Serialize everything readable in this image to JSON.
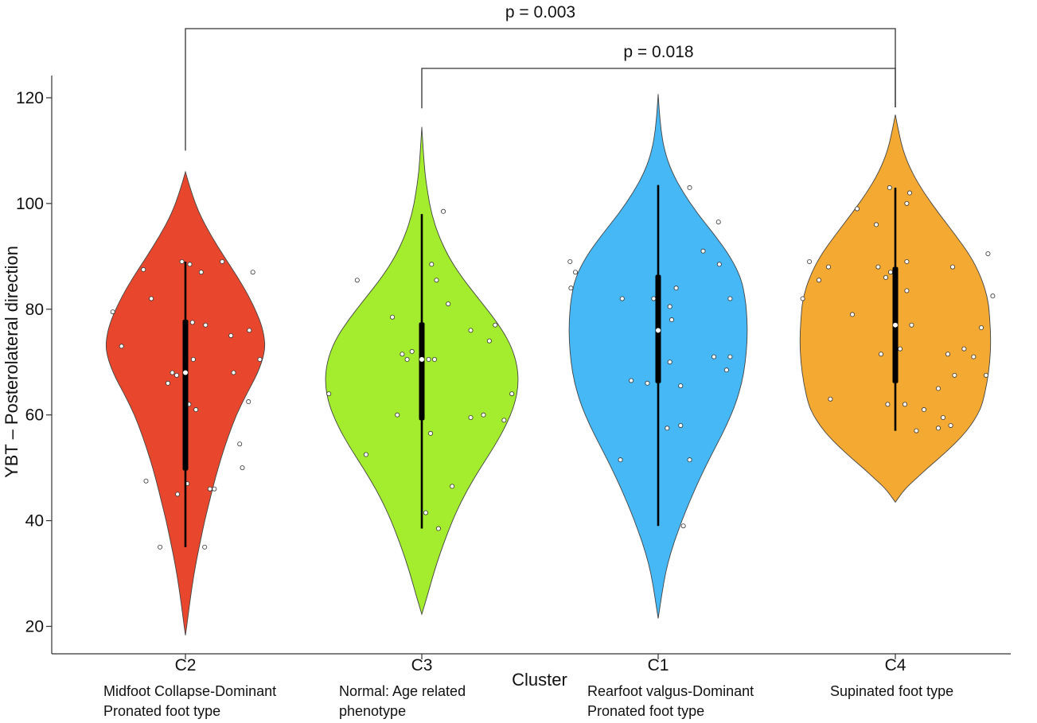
{
  "chart_data": {
    "type": "violin",
    "title": "",
    "xlabel": "Cluster",
    "ylabel": "YBT – Posterolateral direction",
    "ylim": [
      15,
      125
    ],
    "yticks": [
      20,
      40,
      60,
      80,
      100,
      120
    ],
    "grid": false,
    "groups": [
      {
        "name": "C2",
        "description": [
          "Midfoot Collapse-Dominant",
          "Pronated foot type"
        ],
        "color": "#e8472e",
        "median": 68,
        "q1": 49.5,
        "q3": 78,
        "whisker_low": 35,
        "whisker_high": 89,
        "violin_min": 18.3,
        "violin_max": 106,
        "density": [
          [
            18.3,
            0
          ],
          [
            22,
            0.03
          ],
          [
            27,
            0.07
          ],
          [
            32,
            0.12
          ],
          [
            36,
            0.17
          ],
          [
            40,
            0.22
          ],
          [
            44,
            0.28
          ],
          [
            48,
            0.34
          ],
          [
            52,
            0.41
          ],
          [
            56,
            0.49
          ],
          [
            60,
            0.58
          ],
          [
            64,
            0.7
          ],
          [
            68,
            0.83
          ],
          [
            72,
            0.91
          ],
          [
            75,
            0.9
          ],
          [
            78,
            0.85
          ],
          [
            82,
            0.74
          ],
          [
            86,
            0.6
          ],
          [
            90,
            0.44
          ],
          [
            94,
            0.29
          ],
          [
            98,
            0.16
          ],
          [
            102,
            0.07
          ],
          [
            106,
            0
          ]
        ],
        "points": [
          [
            -0.83,
            79.5
          ],
          [
            -0.73,
            73
          ],
          [
            -0.48,
            87.5
          ],
          [
            -0.39,
            82
          ],
          [
            -0.45,
            47.5
          ],
          [
            -0.29,
            35
          ],
          [
            -0.2,
            66
          ],
          [
            -0.15,
            68
          ],
          [
            -0.1,
            67.5
          ],
          [
            -0.09,
            45
          ],
          [
            -0.04,
            89
          ],
          [
            0.05,
            88.5
          ],
          [
            0.04,
            62
          ],
          [
            0.08,
            77.5
          ],
          [
            0.09,
            70.5
          ],
          [
            0.12,
            61
          ],
          [
            0.18,
            87
          ],
          [
            0.23,
            77
          ],
          [
            0.22,
            35
          ],
          [
            0.28,
            46
          ],
          [
            0.33,
            46
          ],
          [
            0.42,
            89
          ],
          [
            0.52,
            75
          ],
          [
            0.55,
            68
          ],
          [
            0.62,
            54.5
          ],
          [
            0.65,
            50
          ],
          [
            0.72,
            62.5
          ],
          [
            0.77,
            87
          ],
          [
            0.73,
            76
          ],
          [
            0.85,
            70.5
          ],
          [
            0.02,
            47
          ]
        ]
      },
      {
        "name": "C3",
        "description": [
          "Normal: Age related",
          "phenotype"
        ],
        "color": "#a3ec2e",
        "median": 70.5,
        "q1": 59,
        "q3": 77.5,
        "whisker_low": 38.5,
        "whisker_high": 98,
        "violin_min": 22.3,
        "violin_max": 114.5,
        "density": [
          [
            22.3,
            0
          ],
          [
            26,
            0.06
          ],
          [
            30,
            0.12
          ],
          [
            34,
            0.19
          ],
          [
            38,
            0.27
          ],
          [
            42,
            0.36
          ],
          [
            46,
            0.47
          ],
          [
            50,
            0.6
          ],
          [
            54,
            0.74
          ],
          [
            58,
            0.86
          ],
          [
            62,
            0.95
          ],
          [
            66,
            0.99
          ],
          [
            70,
            0.97
          ],
          [
            74,
            0.89
          ],
          [
            78,
            0.75
          ],
          [
            82,
            0.58
          ],
          [
            86,
            0.41
          ],
          [
            90,
            0.27
          ],
          [
            94,
            0.17
          ],
          [
            98,
            0.1
          ],
          [
            102,
            0.06
          ],
          [
            106,
            0.03
          ],
          [
            110,
            0.015
          ],
          [
            114.5,
            0
          ]
        ],
        "points": [
          [
            -0.95,
            64
          ],
          [
            -0.66,
            85.5
          ],
          [
            -0.57,
            52.5
          ],
          [
            -0.3,
            78.5
          ],
          [
            -0.25,
            60
          ],
          [
            -0.2,
            71.5
          ],
          [
            -0.1,
            72
          ],
          [
            -0.15,
            70.5
          ],
          [
            0.1,
            88.5
          ],
          [
            0.15,
            85.5
          ],
          [
            0.07,
            70.5
          ],
          [
            0.04,
            41.5
          ],
          [
            0.09,
            56.5
          ],
          [
            0.13,
            70.5
          ],
          [
            0.17,
            38.5
          ],
          [
            0.22,
            98.5
          ],
          [
            0.27,
            81
          ],
          [
            0.31,
            46.5
          ],
          [
            0.5,
            59.5
          ],
          [
            0.5,
            76
          ],
          [
            0.63,
            60
          ],
          [
            0.69,
            74
          ],
          [
            0.75,
            77
          ],
          [
            0.84,
            59
          ],
          [
            0.92,
            64
          ]
        ]
      },
      {
        "name": "C1",
        "description": [
          "Rearfoot valgus-Dominant",
          "Pronated foot type"
        ],
        "color": "#45b8f5",
        "median": 76,
        "q1": 66,
        "q3": 86.5,
        "whisker_low": 39,
        "whisker_high": 103.5,
        "violin_min": 21.5,
        "violin_max": 120.7,
        "density": [
          [
            21.5,
            0
          ],
          [
            26,
            0.04
          ],
          [
            30,
            0.08
          ],
          [
            34,
            0.14
          ],
          [
            38,
            0.22
          ],
          [
            42,
            0.31
          ],
          [
            46,
            0.41
          ],
          [
            50,
            0.52
          ],
          [
            54,
            0.64
          ],
          [
            58,
            0.76
          ],
          [
            62,
            0.86
          ],
          [
            66,
            0.93
          ],
          [
            70,
            0.97
          ],
          [
            74,
            0.99
          ],
          [
            78,
            0.99
          ],
          [
            82,
            0.97
          ],
          [
            86,
            0.92
          ],
          [
            90,
            0.8
          ],
          [
            94,
            0.63
          ],
          [
            98,
            0.44
          ],
          [
            102,
            0.28
          ],
          [
            106,
            0.15
          ],
          [
            110,
            0.07
          ],
          [
            114,
            0.03
          ],
          [
            118,
            0.01
          ],
          [
            120.7,
            0
          ]
        ],
        "points": [
          [
            -0.98,
            89
          ],
          [
            -0.92,
            87
          ],
          [
            -0.97,
            84
          ],
          [
            -0.4,
            82
          ],
          [
            -0.3,
            66.5
          ],
          [
            -0.42,
            51.5
          ],
          [
            -0.12,
            66
          ],
          [
            -0.05,
            82
          ],
          [
            0.1,
            57.5
          ],
          [
            0.13,
            80.5
          ],
          [
            0.13,
            70
          ],
          [
            0.15,
            78
          ],
          [
            0.2,
            84
          ],
          [
            0.25,
            65.5
          ],
          [
            0.25,
            58
          ],
          [
            0.28,
            39
          ],
          [
            0.35,
            51.5
          ],
          [
            0.35,
            103
          ],
          [
            0.5,
            91
          ],
          [
            0.62,
            71
          ],
          [
            0.68,
            88.5
          ],
          [
            0.67,
            96.5
          ],
          [
            0.76,
            68.5
          ],
          [
            0.8,
            82
          ],
          [
            0.8,
            71
          ]
        ]
      },
      {
        "name": "C4",
        "description": [
          "Supinated foot type"
        ],
        "color": "#f4aa32",
        "median": 77,
        "q1": 66,
        "q3": 88,
        "whisker_low": 57,
        "whisker_high": 103,
        "violin_min": 43.5,
        "violin_max": 116.8,
        "density": [
          [
            43.5,
            0
          ],
          [
            46,
            0.1
          ],
          [
            48,
            0.22
          ],
          [
            50,
            0.34
          ],
          [
            52,
            0.47
          ],
          [
            54,
            0.59
          ],
          [
            56,
            0.7
          ],
          [
            58,
            0.79
          ],
          [
            60,
            0.86
          ],
          [
            62,
            0.91
          ],
          [
            66,
            0.96
          ],
          [
            70,
            0.99
          ],
          [
            74,
            1.0
          ],
          [
            78,
            0.99
          ],
          [
            82,
            0.97
          ],
          [
            86,
            0.9
          ],
          [
            90,
            0.79
          ],
          [
            94,
            0.63
          ],
          [
            98,
            0.46
          ],
          [
            102,
            0.3
          ],
          [
            106,
            0.17
          ],
          [
            110,
            0.08
          ],
          [
            114,
            0.03
          ],
          [
            116.8,
            0
          ]
        ],
        "points": [
          [
            -0.97,
            82
          ],
          [
            -0.9,
            89
          ],
          [
            -0.8,
            85.5
          ],
          [
            -0.7,
            88
          ],
          [
            -0.68,
            63
          ],
          [
            -0.45,
            79
          ],
          [
            -0.4,
            99
          ],
          [
            -0.2,
            96
          ],
          [
            -0.18,
            88
          ],
          [
            -0.15,
            71.5
          ],
          [
            -0.1,
            86
          ],
          [
            -0.05,
            87
          ],
          [
            -0.08,
            62
          ],
          [
            -0.06,
            103
          ],
          [
            0.05,
            72.5
          ],
          [
            0.1,
            62
          ],
          [
            0.12,
            83.5
          ],
          [
            0.12,
            89
          ],
          [
            0.12,
            100
          ],
          [
            0.15,
            102
          ],
          [
            0.17,
            77
          ],
          [
            0.22,
            57
          ],
          [
            0.3,
            61
          ],
          [
            0.45,
            57.5
          ],
          [
            0.45,
            65
          ],
          [
            0.5,
            59.5
          ],
          [
            0.55,
            71.5
          ],
          [
            0.58,
            58
          ],
          [
            0.62,
            67.5
          ],
          [
            0.6,
            88
          ],
          [
            0.72,
            72.5
          ],
          [
            0.82,
            71
          ],
          [
            0.9,
            76.5
          ],
          [
            0.95,
            67.5
          ],
          [
            0.97,
            90.5
          ],
          [
            1.02,
            82.5
          ]
        ]
      }
    ],
    "comparisons": [
      {
        "from": "C2",
        "to": "C4",
        "label": "p = 0.003",
        "level": 2,
        "start_y": 110,
        "end_y": 118
      },
      {
        "from": "C3",
        "to": "C4",
        "label": "p = 0.018",
        "level": 1,
        "start_y": 118,
        "end_y": 118
      }
    ]
  }
}
